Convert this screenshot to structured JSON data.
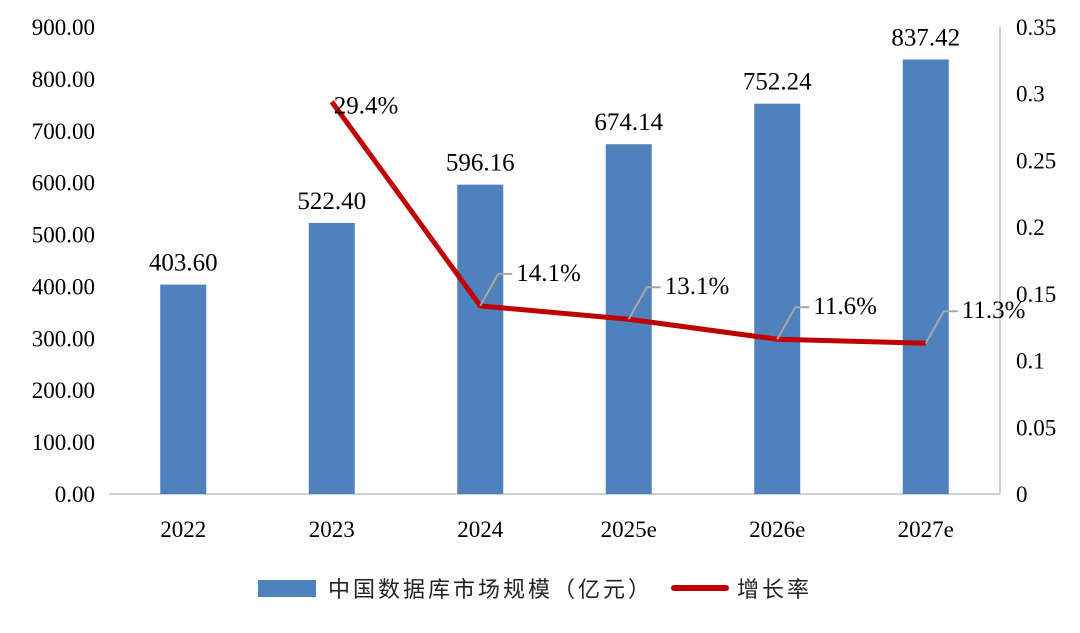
{
  "chart_data": {
    "type": "bar+line",
    "categories": [
      "2022",
      "2023",
      "2024",
      "2025e",
      "2026e",
      "2027e"
    ],
    "series": [
      {
        "name": "中国数据库市场规模（亿元）",
        "type": "bar",
        "axis": "left",
        "values": [
          403.6,
          522.4,
          596.16,
          674.14,
          752.24,
          837.42
        ],
        "labels": [
          "403.60",
          "522.40",
          "596.16",
          "674.14",
          "752.24",
          "837.42"
        ],
        "color": "#4F81BD"
      },
      {
        "name": "增长率",
        "type": "line",
        "axis": "right",
        "values": [
          null,
          0.294,
          0.141,
          0.131,
          0.116,
          0.113
        ],
        "labels": [
          "",
          "29.4%",
          "14.1%",
          "13.1%",
          "11.6%",
          "11.3%"
        ],
        "color": "#C00000"
      }
    ],
    "left_axis": {
      "ylim": [
        0,
        900
      ],
      "ticks": [
        "0.00",
        "100.00",
        "200.00",
        "300.00",
        "400.00",
        "500.00",
        "600.00",
        "700.00",
        "800.00",
        "900.00"
      ]
    },
    "right_axis": {
      "ylim": [
        0,
        0.35
      ],
      "ticks": [
        "0",
        "0.05",
        "0.1",
        "0.15",
        "0.2",
        "0.25",
        "0.3",
        "0.35"
      ]
    },
    "legend_position": "bottom",
    "grid": false
  }
}
